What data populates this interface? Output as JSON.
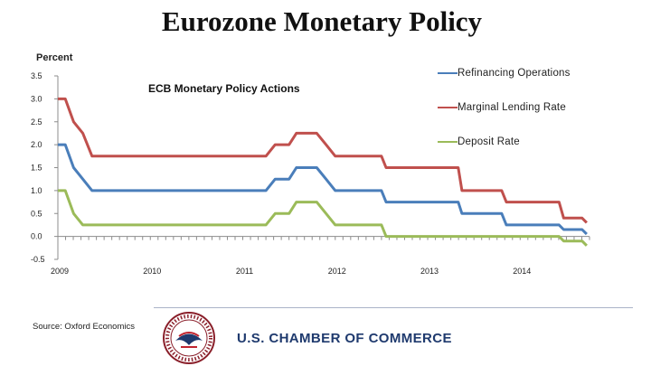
{
  "title": "Eurozone Monetary Policy",
  "ylabel": "Percent",
  "subtitle": "ECB Monetary Policy Actions",
  "source": "Source: Oxford Economics",
  "brand": "U.S. CHAMBER OF COMMERCE",
  "seal_text": "CHAMBER OF COMMERCE OF THE UNITED STATES OF AMERICA",
  "colors": {
    "refi": "#4a7eba",
    "mlf": "#c0504d",
    "deposit": "#9bbb59",
    "text": "#222222",
    "brand": "#1f3a6e"
  },
  "chart_data": {
    "type": "line",
    "title": "ECB Monetary Policy Actions",
    "xlabel": "",
    "ylabel": "Percent",
    "xlim": [
      2009.0,
      2014.75
    ],
    "ylim": [
      -0.5,
      3.5
    ],
    "yticks": [
      -0.5,
      0.0,
      0.5,
      1.0,
      1.5,
      2.0,
      2.5,
      3.0,
      3.5
    ],
    "ytick_labels": [
      "-0.5",
      "0.0",
      "0.5",
      "1.0",
      "1.5",
      "2.0",
      "2.5",
      "3.0",
      "3.5"
    ],
    "xticks": [
      2009,
      2010,
      2011,
      2012,
      2013,
      2014
    ],
    "xtick_labels": [
      "2009",
      "2010",
      "2011",
      "2012",
      "2013",
      "2014"
    ],
    "legend_position": "top-right",
    "series": [
      {
        "name": "Refinancing Operations",
        "color": "#4a7eba",
        "x": [
          2009.0,
          2009.08,
          2009.17,
          2009.27,
          2009.37,
          2011.25,
          2011.35,
          2011.5,
          2011.58,
          2011.8,
          2011.9,
          2012.0,
          2012.5,
          2012.55,
          2013.33,
          2013.37,
          2013.8,
          2013.85,
          2014.42,
          2014.47,
          2014.67,
          2014.72
        ],
        "values": [
          2.0,
          2.0,
          1.5,
          1.25,
          1.0,
          1.0,
          1.25,
          1.25,
          1.5,
          1.5,
          1.25,
          1.0,
          1.0,
          0.75,
          0.75,
          0.5,
          0.5,
          0.25,
          0.25,
          0.15,
          0.15,
          0.05
        ]
      },
      {
        "name": "Marginal Lending Rate",
        "color": "#c0504d",
        "x": [
          2009.0,
          2009.08,
          2009.17,
          2009.27,
          2009.37,
          2011.25,
          2011.35,
          2011.5,
          2011.58,
          2011.8,
          2011.9,
          2012.0,
          2012.5,
          2012.55,
          2013.33,
          2013.37,
          2013.8,
          2013.85,
          2014.42,
          2014.47,
          2014.67,
          2014.72
        ],
        "values": [
          3.0,
          3.0,
          2.5,
          2.25,
          1.75,
          1.75,
          2.0,
          2.0,
          2.25,
          2.25,
          2.0,
          1.75,
          1.75,
          1.5,
          1.5,
          1.0,
          1.0,
          0.75,
          0.75,
          0.4,
          0.4,
          0.3
        ]
      },
      {
        "name": "Deposit Rate",
        "color": "#9bbb59",
        "x": [
          2009.0,
          2009.08,
          2009.17,
          2009.27,
          2011.25,
          2011.35,
          2011.5,
          2011.58,
          2011.8,
          2011.9,
          2012.0,
          2012.5,
          2012.55,
          2014.42,
          2014.47,
          2014.67,
          2014.72
        ],
        "values": [
          1.0,
          1.0,
          0.5,
          0.25,
          0.25,
          0.5,
          0.5,
          0.75,
          0.75,
          0.5,
          0.25,
          0.25,
          0.0,
          0.0,
          -0.1,
          -0.1,
          -0.2
        ]
      }
    ]
  }
}
